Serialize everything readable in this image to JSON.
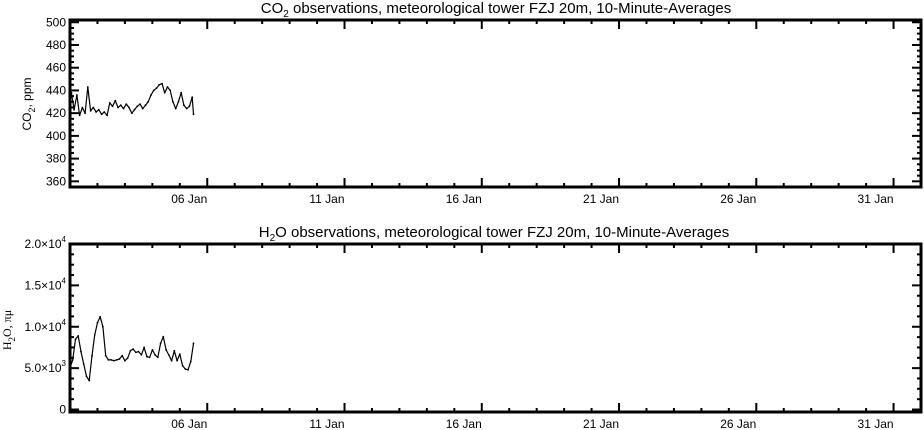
{
  "chart_data": [
    {
      "type": "line",
      "title_main": "CO",
      "title_sub": "2",
      "title_rest": " observations, meteorological tower FZJ 20m, 10-Minute-Averages",
      "ylabel_main": "CO",
      "ylabel_sub": "2",
      "ylabel_rest": ", ppm",
      "xlim": [
        1,
        32
      ],
      "ylim": [
        355,
        502
      ],
      "xticks": [
        6,
        11,
        16,
        21,
        26,
        31
      ],
      "xtick_labels": [
        "06 Jan",
        "11 Jan",
        "16 Jan",
        "21 Jan",
        "26 Jan",
        "31 Jan"
      ],
      "yticks": [
        360,
        380,
        400,
        420,
        440,
        460,
        480,
        500
      ],
      "ytick_labels": [
        "360",
        "380",
        "400",
        "420",
        "440",
        "460",
        "480",
        "500"
      ],
      "grid": false,
      "series": [
        {
          "x": [
            1.05,
            1.15,
            1.25,
            1.35,
            1.45,
            1.55,
            1.65,
            1.75,
            1.85,
            1.95,
            2.05,
            2.15,
            2.25,
            2.35,
            2.45,
            2.55,
            2.65,
            2.75,
            2.85,
            2.95,
            3.05,
            3.15,
            3.25,
            3.35,
            3.45,
            3.55,
            3.65,
            3.75,
            3.85,
            3.95,
            4.05,
            4.15,
            4.25,
            4.35,
            4.45,
            4.55,
            4.65,
            4.75,
            4.85,
            4.95,
            5.05,
            5.15,
            5.25,
            5.35,
            5.45
          ],
          "y": [
            438,
            423,
            436,
            418,
            425,
            420,
            443,
            422,
            425,
            421,
            423,
            419,
            421,
            418,
            429,
            426,
            431,
            425,
            427,
            424,
            428,
            425,
            420,
            423,
            426,
            428,
            424,
            427,
            430,
            436,
            440,
            442,
            445,
            446,
            438,
            443,
            440,
            430,
            424,
            430,
            438,
            427,
            424,
            426,
            434
          ]
        },
        {
          "x": [
            5.45,
            5.5
          ],
          "y": [
            434,
            419
          ]
        }
      ]
    },
    {
      "type": "line",
      "title_main": "H",
      "title_sub": "2",
      "title_rest": "O observations, meteorological tower FZJ 20m, 10-Minute-Averages",
      "ylabel_main": "H",
      "ylabel_sub": "2",
      "ylabel_rest": "O, πμ",
      "xlim": [
        1,
        32
      ],
      "ylim": [
        -300,
        20000
      ],
      "xticks": [
        6,
        11,
        16,
        21,
        26,
        31
      ],
      "xtick_labels": [
        "06 Jan",
        "11 Jan",
        "16 Jan",
        "21 Jan",
        "26 Jan",
        "31 Jan"
      ],
      "yticks": [
        0,
        5000,
        10000,
        15000,
        20000
      ],
      "ytick_labels": [
        "0",
        "5.0×10",
        "1.0×10",
        "1.5×10",
        "2.0×10"
      ],
      "ytick_exponents": [
        "",
        "3",
        "4",
        "4",
        "4"
      ],
      "grid": false,
      "series": [
        {
          "x": [
            1.0,
            1.1,
            1.2,
            1.3,
            1.4,
            1.5,
            1.6,
            1.7,
            1.8,
            1.9,
            2.0,
            2.1,
            2.2,
            2.3,
            2.4,
            2.5,
            2.6,
            2.7,
            2.8,
            2.9,
            3.0,
            3.1,
            3.2,
            3.3,
            3.4,
            3.5,
            3.6,
            3.7,
            3.8,
            3.9,
            4.0,
            4.1,
            4.2,
            4.3,
            4.4,
            4.5,
            4.6,
            4.7,
            4.8,
            4.9,
            5.0,
            5.1,
            5.2,
            5.3,
            5.4,
            5.5
          ],
          "y": [
            5000,
            6000,
            8500,
            8900,
            7000,
            5500,
            4000,
            3500,
            6500,
            9000,
            10500,
            11200,
            10000,
            6500,
            6000,
            6000,
            5900,
            6000,
            6100,
            6500,
            5900,
            6200,
            7100,
            7300,
            6900,
            7000,
            6600,
            7500,
            6400,
            6300,
            7200,
            6600,
            6300,
            8000,
            8800,
            7200,
            6600,
            5900,
            7100,
            5900,
            6700,
            5300,
            4900,
            4800,
            5800,
            8000
          ]
        }
      ]
    }
  ]
}
